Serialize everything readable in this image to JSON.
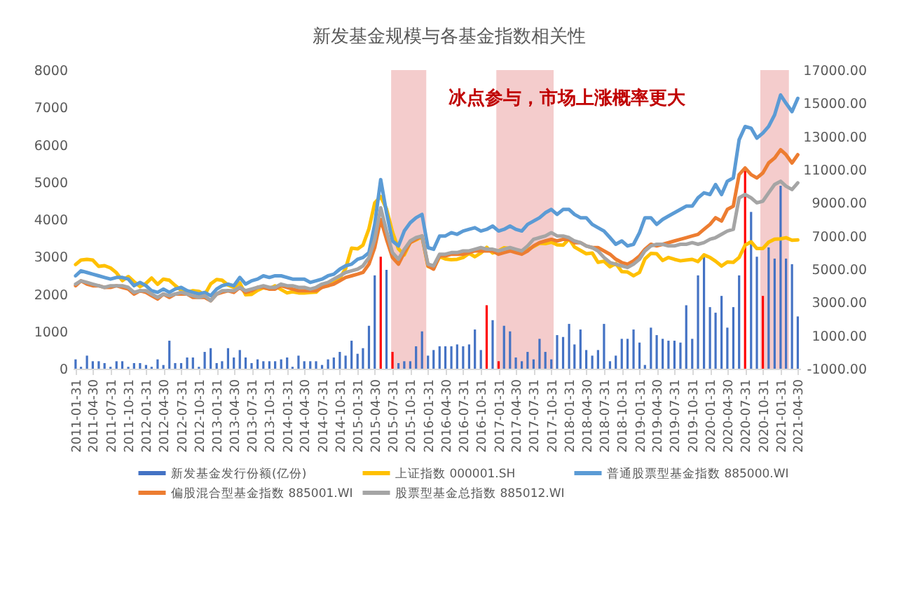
{
  "chart_data": {
    "type": "bar",
    "title": "新发基金规模与各基金指数相关性",
    "x": [
      "2011-01-31",
      "2011-02-28",
      "2011-03-31",
      "2011-04-30",
      "2011-05-31",
      "2011-06-30",
      "2011-07-31",
      "2011-08-31",
      "2011-09-30",
      "2011-10-31",
      "2011-11-30",
      "2011-12-31",
      "2012-01-31",
      "2012-02-29",
      "2012-03-31",
      "2012-04-30",
      "2012-05-31",
      "2012-06-30",
      "2012-07-31",
      "2012-08-31",
      "2012-09-30",
      "2012-10-31",
      "2012-11-30",
      "2012-12-31",
      "2013-01-31",
      "2013-02-28",
      "2013-03-31",
      "2013-04-30",
      "2013-05-31",
      "2013-06-30",
      "2013-07-31",
      "2013-08-31",
      "2013-09-30",
      "2013-10-31",
      "2013-11-30",
      "2013-12-31",
      "2014-01-31",
      "2014-02-28",
      "2014-03-31",
      "2014-04-30",
      "2014-05-31",
      "2014-06-30",
      "2014-07-31",
      "2014-08-31",
      "2014-09-30",
      "2014-10-31",
      "2014-11-30",
      "2014-12-31",
      "2015-01-31",
      "2015-02-28",
      "2015-03-31",
      "2015-04-30",
      "2015-05-31",
      "2015-06-30",
      "2015-07-31",
      "2015-08-31",
      "2015-09-30",
      "2015-10-31",
      "2015-11-30",
      "2015-12-31",
      "2016-01-31",
      "2016-02-29",
      "2016-03-31",
      "2016-04-30",
      "2016-05-31",
      "2016-06-30",
      "2016-07-31",
      "2016-08-31",
      "2016-09-30",
      "2016-10-31",
      "2016-11-30",
      "2016-12-31",
      "2017-01-31",
      "2017-02-28",
      "2017-03-31",
      "2017-04-30",
      "2017-05-31",
      "2017-06-30",
      "2017-07-31",
      "2017-08-31",
      "2017-09-30",
      "2017-10-31",
      "2017-11-30",
      "2017-12-31",
      "2018-01-31",
      "2018-02-28",
      "2018-03-31",
      "2018-04-30",
      "2018-05-31",
      "2018-06-30",
      "2018-07-31",
      "2018-08-31",
      "2018-09-30",
      "2018-10-31",
      "2018-11-30",
      "2018-12-31",
      "2019-01-31",
      "2019-02-28",
      "2019-03-31",
      "2019-04-30",
      "2019-05-31",
      "2019-06-30",
      "2019-07-31",
      "2019-08-31",
      "2019-09-30",
      "2019-10-31",
      "2019-11-30",
      "2019-12-31",
      "2020-01-31",
      "2020-02-29",
      "2020-03-31",
      "2020-04-30",
      "2020-05-31",
      "2020-06-30",
      "2020-07-31",
      "2020-08-31",
      "2020-09-30",
      "2020-10-31",
      "2020-11-30",
      "2020-12-31",
      "2021-01-31",
      "2021-02-28",
      "2021-03-31",
      "2021-04-30"
    ],
    "xlim": [
      "2011-01-17",
      "2021-05-13"
    ],
    "xticks": [
      "2011-01-31",
      "2011-04-30",
      "2011-07-31",
      "2011-10-31",
      "2012-01-31",
      "2012-04-30",
      "2012-07-31",
      "2012-10-31",
      "2013-01-31",
      "2013-04-30",
      "2013-07-31",
      "2013-10-31",
      "2014-01-31",
      "2014-04-30",
      "2014-07-31",
      "2014-10-31",
      "2015-01-31",
      "2015-04-30",
      "2015-07-31",
      "2015-10-31",
      "2016-01-31",
      "2016-04-30",
      "2016-07-31",
      "2016-10-31",
      "2017-01-31",
      "2017-04-30",
      "2017-07-31",
      "2017-10-31",
      "2018-01-31",
      "2018-04-30",
      "2018-07-31",
      "2018-10-31",
      "2019-01-31",
      "2019-04-30",
      "2019-07-31",
      "2019-10-31",
      "2020-01-31",
      "2020-04-30",
      "2020-07-31",
      "2020-10-31",
      "2021-01-31",
      "2021-04-30"
    ],
    "ylim": [
      0,
      8000
    ],
    "yticks": [
      0,
      1000,
      2000,
      3000,
      4000,
      5000,
      6000,
      7000,
      8000
    ],
    "y2lim": [
      -1000,
      17000
    ],
    "y2ticks": [
      {
        "value": -1000,
        "label": "-1000.00"
      },
      {
        "value": 1000,
        "label": "1000.00"
      },
      {
        "value": 3000,
        "label": "3000.00"
      },
      {
        "value": 5000,
        "label": "5000.00"
      },
      {
        "value": 7000,
        "label": "7000.00"
      },
      {
        "value": 9000,
        "label": "9000.00"
      },
      {
        "value": 11000,
        "label": "11000.00"
      },
      {
        "value": 13000,
        "label": "13000.00"
      },
      {
        "value": 15000,
        "label": "15000.00"
      },
      {
        "value": 17000,
        "label": "17000.00"
      }
    ],
    "series": [
      {
        "name": "新发基金发行份额(亿份)",
        "color": "#4472c4",
        "colors": [
          "#4472c4",
          "#4472c4",
          "#4472c4",
          "#4472c4",
          "#4472c4",
          "#4472c4",
          "#4472c4",
          "#4472c4",
          "#4472c4",
          "#4472c4",
          "#4472c4",
          "#4472c4",
          "#4472c4",
          "#4472c4",
          "#4472c4",
          "#4472c4",
          "#4472c4",
          "#4472c4",
          "#4472c4",
          "#4472c4",
          "#4472c4",
          "#4472c4",
          "#4472c4",
          "#4472c4",
          "#4472c4",
          "#4472c4",
          "#4472c4",
          "#4472c4",
          "#4472c4",
          "#4472c4",
          "#4472c4",
          "#4472c4",
          "#4472c4",
          "#4472c4",
          "#4472c4",
          "#4472c4",
          "#4472c4",
          "#4472c4",
          "#4472c4",
          "#4472c4",
          "#4472c4",
          "#4472c4",
          "#4472c4",
          "#4472c4",
          "#4472c4",
          "#4472c4",
          "#4472c4",
          "#4472c4",
          "#4472c4",
          "#4472c4",
          "#4472c4",
          "#4472c4",
          "#ff0000",
          "#4472c4",
          "#ff0000",
          "#4472c4",
          "#4472c4",
          "#4472c4",
          "#4472c4",
          "#4472c4",
          "#4472c4",
          "#4472c4",
          "#4472c4",
          "#4472c4",
          "#4472c4",
          "#4472c4",
          "#4472c4",
          "#4472c4",
          "#4472c4",
          "#4472c4",
          "#ff0000",
          "#4472c4",
          "#ff0000",
          "#4472c4",
          "#4472c4",
          "#4472c4",
          "#4472c4",
          "#4472c4",
          "#4472c4",
          "#4472c4",
          "#4472c4",
          "#4472c4",
          "#4472c4",
          "#4472c4",
          "#4472c4",
          "#4472c4",
          "#4472c4",
          "#4472c4",
          "#4472c4",
          "#4472c4",
          "#4472c4",
          "#4472c4",
          "#4472c4",
          "#4472c4",
          "#4472c4",
          "#4472c4",
          "#4472c4",
          "#4472c4",
          "#4472c4",
          "#4472c4",
          "#4472c4",
          "#4472c4",
          "#4472c4",
          "#4472c4",
          "#4472c4",
          "#4472c4",
          "#4472c4",
          "#4472c4",
          "#4472c4",
          "#4472c4",
          "#4472c4",
          "#4472c4",
          "#4472c4",
          "#4472c4",
          "#ff0000",
          "#4472c4",
          "#4472c4",
          "#ff0000",
          "#4472c4",
          "#4472c4",
          "#4472c4",
          "#4472c4",
          "#4472c4",
          "#4472c4"
        ],
        "values": [
          250,
          50,
          350,
          200,
          200,
          150,
          50,
          200,
          200,
          50,
          150,
          150,
          100,
          50,
          250,
          100,
          750,
          150,
          150,
          300,
          300,
          50,
          450,
          550,
          150,
          200,
          550,
          300,
          500,
          300,
          150,
          250,
          200,
          200,
          200,
          250,
          300,
          50,
          350,
          200,
          200,
          200,
          100,
          250,
          300,
          450,
          350,
          750,
          400,
          550,
          1150,
          2500,
          3000,
          2650,
          450,
          150,
          200,
          200,
          600,
          1000,
          350,
          500,
          600,
          600,
          600,
          650,
          600,
          650,
          1050,
          500,
          1700,
          1300,
          200,
          1150,
          1000,
          300,
          200,
          450,
          250,
          800,
          450,
          250,
          900,
          850,
          1200,
          650,
          1050,
          500,
          350,
          500,
          1200,
          200,
          350,
          800,
          800,
          1050,
          700,
          100,
          1100,
          900,
          800,
          750,
          750,
          700,
          1700,
          800,
          2500,
          3000,
          1650,
          1500,
          1950,
          1100,
          1650,
          2500,
          5350,
          4200,
          3000,
          1950,
          3250,
          2950,
          4900,
          2950,
          2800,
          1400
        ]
      },
      {
        "name": "上证指数 000001.SH",
        "type": "line",
        "color": "#ffc000",
        "values": [
          2790,
          2910,
          2930,
          2910,
          2740,
          2760,
          2700,
          2570,
          2360,
          2470,
          2330,
          2200,
          2290,
          2430,
          2260,
          2400,
          2370,
          2230,
          2100,
          2050,
          2090,
          2070,
          1980,
          2270,
          2390,
          2370,
          2240,
          2180,
          2300,
          1980,
          1990,
          2100,
          2170,
          2140,
          2220,
          2120,
          2030,
          2060,
          2030,
          2030,
          2040,
          2050,
          2200,
          2220,
          2360,
          2420,
          2680,
          3230,
          3210,
          3310,
          3750,
          4440,
          4610,
          4280,
          3660,
          3210,
          3050,
          3380,
          3450,
          3540,
          2740,
          2690,
          3000,
          2940,
          2920,
          2930,
          2980,
          3090,
          3000,
          3100,
          3250,
          3100,
          3160,
          3240,
          3220,
          3150,
          3120,
          3190,
          3270,
          3360,
          3350,
          3390,
          3320,
          3310,
          3480,
          3260,
          3170,
          3080,
          3100,
          2850,
          2880,
          2730,
          2820,
          2600,
          2590,
          2490,
          2580,
          2940,
          3090,
          3080,
          2900,
          2980,
          2930,
          2890,
          2910,
          2930,
          2870,
          3050,
          2980,
          2880,
          2750,
          2860,
          2850,
          2980,
          3310,
          3400,
          3220,
          3220,
          3390,
          3470,
          3480,
          3510,
          3440,
          3450
        ]
      },
      {
        "name": "普通股票型基金指数 885000.WI",
        "type": "line",
        "axis": "y2",
        "color": "#5b9bd5",
        "values": [
          4600,
          4900,
          4800,
          4700,
          4600,
          4500,
          4400,
          4500,
          4500,
          4400,
          4000,
          4200,
          4000,
          3700,
          3600,
          3800,
          3600,
          3800,
          3900,
          3700,
          3600,
          3500,
          3600,
          3400,
          3800,
          4000,
          4100,
          4000,
          4500,
          4100,
          4300,
          4400,
          4600,
          4500,
          4600,
          4600,
          4500,
          4400,
          4400,
          4400,
          4200,
          4300,
          4400,
          4600,
          4700,
          5000,
          5200,
          5300,
          5600,
          5700,
          6000,
          7700,
          10400,
          8400,
          6700,
          6400,
          7300,
          7800,
          8100,
          8300,
          6300,
          6200,
          7000,
          7000,
          7200,
          7100,
          7300,
          7400,
          7500,
          7300,
          7400,
          7600,
          7300,
          7400,
          7600,
          7400,
          7300,
          7700,
          7900,
          8100,
          8400,
          8600,
          8300,
          8600,
          8600,
          8300,
          8100,
          8100,
          7700,
          7500,
          7300,
          6900,
          6500,
          6700,
          6400,
          6500,
          7200,
          8100,
          8100,
          7700,
          8000,
          8200,
          8400,
          8600,
          8800,
          8800,
          9300,
          9600,
          9500,
          10100,
          9500,
          10300,
          10500,
          12800,
          13600,
          13500,
          12900,
          13200,
          13600,
          14300,
          15500,
          15000,
          14500,
          15300
        ]
      },
      {
        "name": "偏股混合型基金指数 885001.WI",
        "type": "line",
        "axis": "y2",
        "color": "#ed7d31",
        "values": [
          4000,
          4300,
          4100,
          4000,
          4000,
          3900,
          3900,
          4000,
          3900,
          3800,
          3500,
          3700,
          3600,
          3400,
          3200,
          3500,
          3300,
          3500,
          3500,
          3500,
          3300,
          3300,
          3300,
          3100,
          3500,
          3600,
          3700,
          3600,
          3900,
          3600,
          3700,
          3900,
          3900,
          3800,
          3800,
          4000,
          3900,
          3800,
          3700,
          3700,
          3700,
          3700,
          3900,
          4000,
          4100,
          4300,
          4500,
          4600,
          4700,
          4800,
          5300,
          6300,
          8000,
          6800,
          5700,
          5300,
          6000,
          6600,
          6800,
          7000,
          5200,
          5000,
          5800,
          5800,
          5900,
          5900,
          5900,
          6000,
          6100,
          6100,
          6100,
          6100,
          5900,
          6000,
          6100,
          6000,
          5900,
          6100,
          6400,
          6600,
          6700,
          6800,
          6700,
          6800,
          6800,
          6600,
          6600,
          6400,
          6300,
          6300,
          6100,
          5900,
          5600,
          5400,
          5300,
          5500,
          5800,
          6200,
          6500,
          6400,
          6500,
          6600,
          6700,
          6800,
          6900,
          7000,
          7100,
          7400,
          7700,
          8100,
          7900,
          8600,
          8800,
          10700,
          11100,
          10700,
          10500,
          10800,
          11400,
          11700,
          12200,
          11900,
          11400,
          11900
        ]
      },
      {
        "name": "股票型基金总指数 885012.WI",
        "type": "line",
        "axis": "y2",
        "color": "#a5a5a5",
        "values": [
          4100,
          4300,
          4200,
          4100,
          4000,
          3900,
          4000,
          4000,
          4000,
          3900,
          3600,
          3700,
          3700,
          3500,
          3300,
          3500,
          3400,
          3500,
          3600,
          3500,
          3400,
          3300,
          3400,
          3100,
          3500,
          3700,
          3700,
          3700,
          3900,
          3700,
          3800,
          3900,
          4000,
          3900,
          3900,
          4100,
          4000,
          4000,
          3900,
          3900,
          3800,
          3900,
          4100,
          4200,
          4400,
          4600,
          4800,
          4900,
          5000,
          5200,
          5700,
          6800,
          8700,
          7300,
          6000,
          5600,
          6200,
          6700,
          6900,
          7000,
          5300,
          5200,
          5900,
          5900,
          6000,
          6000,
          6100,
          6100,
          6200,
          6300,
          6200,
          6200,
          6100,
          6200,
          6300,
          6200,
          6100,
          6400,
          6800,
          6900,
          7000,
          7200,
          7000,
          7000,
          6900,
          6700,
          6600,
          6400,
          6300,
          6100,
          5700,
          5400,
          5300,
          5200,
          5100,
          5300,
          5600,
          6100,
          6400,
          6500,
          6500,
          6400,
          6400,
          6500,
          6500,
          6600,
          6500,
          6600,
          6800,
          6900,
          7100,
          7300,
          7400,
          9300,
          9500,
          9300,
          9000,
          9100,
          9600,
          10100,
          10300,
          10000,
          9800,
          10200
        ]
      }
    ],
    "bands": [
      {
        "axis": "x",
        "from": "2015-07-24",
        "to": "2016-01-22",
        "color": "#f4cccc"
      },
      {
        "axis": "x",
        "from": "2017-01-19",
        "to": "2017-11-12",
        "color": "#f4cccc"
      },
      {
        "axis": "x",
        "from": "2020-10-18",
        "to": "2021-03-15",
        "color": "#f4cccc"
      }
    ],
    "annotations": [
      "冰点参与，市场上涨概率更大"
    ],
    "legend": "bottom",
    "grid": false
  }
}
